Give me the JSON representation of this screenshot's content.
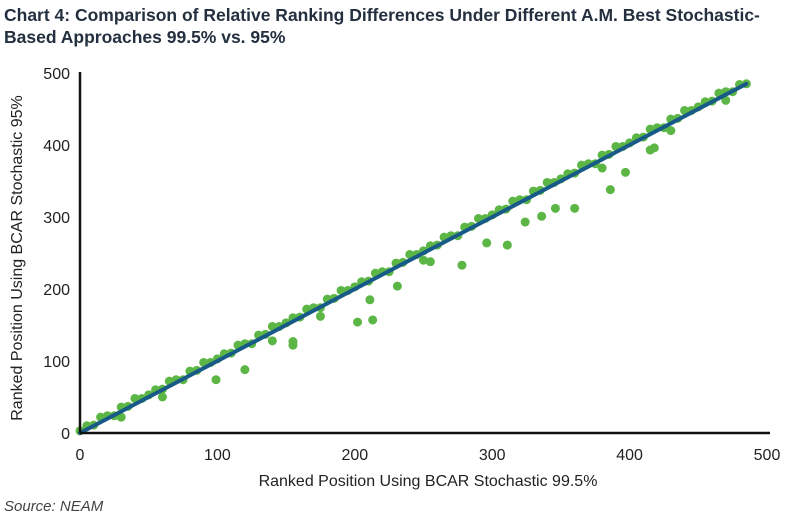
{
  "chart_data": {
    "type": "scatter",
    "title": "Chart 4: Comparison of Relative Ranking Differences Under Different A.M. Best Stochastic-Based Approaches 99.5% vs. 95%",
    "xlabel": "Ranked Position Using BCAR Stochastic 99.5%",
    "ylabel": "Ranked Position Using BCAR Stochastic 95%",
    "xlim": [
      0,
      500
    ],
    "ylim": [
      0,
      500
    ],
    "xticks": [
      "0",
      "100",
      "200",
      "300",
      "400",
      "500"
    ],
    "yticks": [
      "0",
      "100",
      "200",
      "300",
      "400",
      "500"
    ],
    "grid": false,
    "source": "Source: NEAM",
    "colors": {
      "points": "#5cb646",
      "line": "#175a87",
      "axis": "#111111"
    },
    "series": [
      {
        "type": "scatter",
        "x": [
          0,
          5,
          10,
          15,
          20,
          25,
          30,
          35,
          40,
          45,
          50,
          55,
          60,
          65,
          70,
          75,
          80,
          85,
          90,
          95,
          100,
          105,
          110,
          115,
          120,
          125,
          130,
          135,
          140,
          145,
          150,
          155,
          160,
          165,
          170,
          175,
          180,
          185,
          190,
          195,
          200,
          205,
          210,
          215,
          220,
          225,
          230,
          235,
          240,
          245,
          250,
          255,
          260,
          265,
          270,
          275,
          280,
          285,
          290,
          295,
          300,
          305,
          310,
          315,
          320,
          325,
          330,
          335,
          340,
          345,
          350,
          355,
          360,
          365,
          370,
          375,
          380,
          385,
          390,
          395,
          400,
          405,
          410,
          415,
          420,
          425,
          430,
          435,
          440,
          445,
          450,
          455,
          460,
          465,
          470,
          475,
          480,
          485,
          99,
          120,
          155,
          155,
          202,
          213,
          211,
          231,
          255,
          278,
          296,
          311,
          324,
          336,
          346,
          360,
          386,
          397,
          415,
          418,
          30,
          60,
          140,
          175,
          250,
          380,
          430,
          470
        ],
        "y": [
          3,
          10,
          11,
          22,
          24,
          24,
          36,
          37,
          48,
          48,
          53,
          60,
          61,
          72,
          74,
          74,
          86,
          87,
          98,
          98,
          103,
          110,
          111,
          122,
          124,
          124,
          136,
          137,
          148,
          148,
          153,
          160,
          161,
          172,
          174,
          174,
          186,
          187,
          198,
          198,
          203,
          210,
          211,
          222,
          224,
          224,
          236,
          237,
          248,
          248,
          253,
          260,
          261,
          272,
          274,
          274,
          286,
          287,
          298,
          298,
          303,
          310,
          311,
          322,
          324,
          324,
          336,
          337,
          348,
          348,
          353,
          360,
          361,
          372,
          374,
          374,
          386,
          387,
          398,
          398,
          403,
          410,
          411,
          422,
          424,
          424,
          436,
          437,
          448,
          448,
          453,
          460,
          461,
          472,
          474,
          474,
          484,
          485,
          74,
          88,
          122,
          127,
          154,
          157,
          185,
          204,
          238,
          233,
          264,
          261,
          293,
          301,
          312,
          312,
          338,
          362,
          393,
          396,
          22,
          50,
          128,
          162,
          240,
          368,
          420,
          462
        ]
      },
      {
        "type": "line",
        "x": [
          0,
          485
        ],
        "y": [
          0,
          485
        ]
      }
    ]
  }
}
